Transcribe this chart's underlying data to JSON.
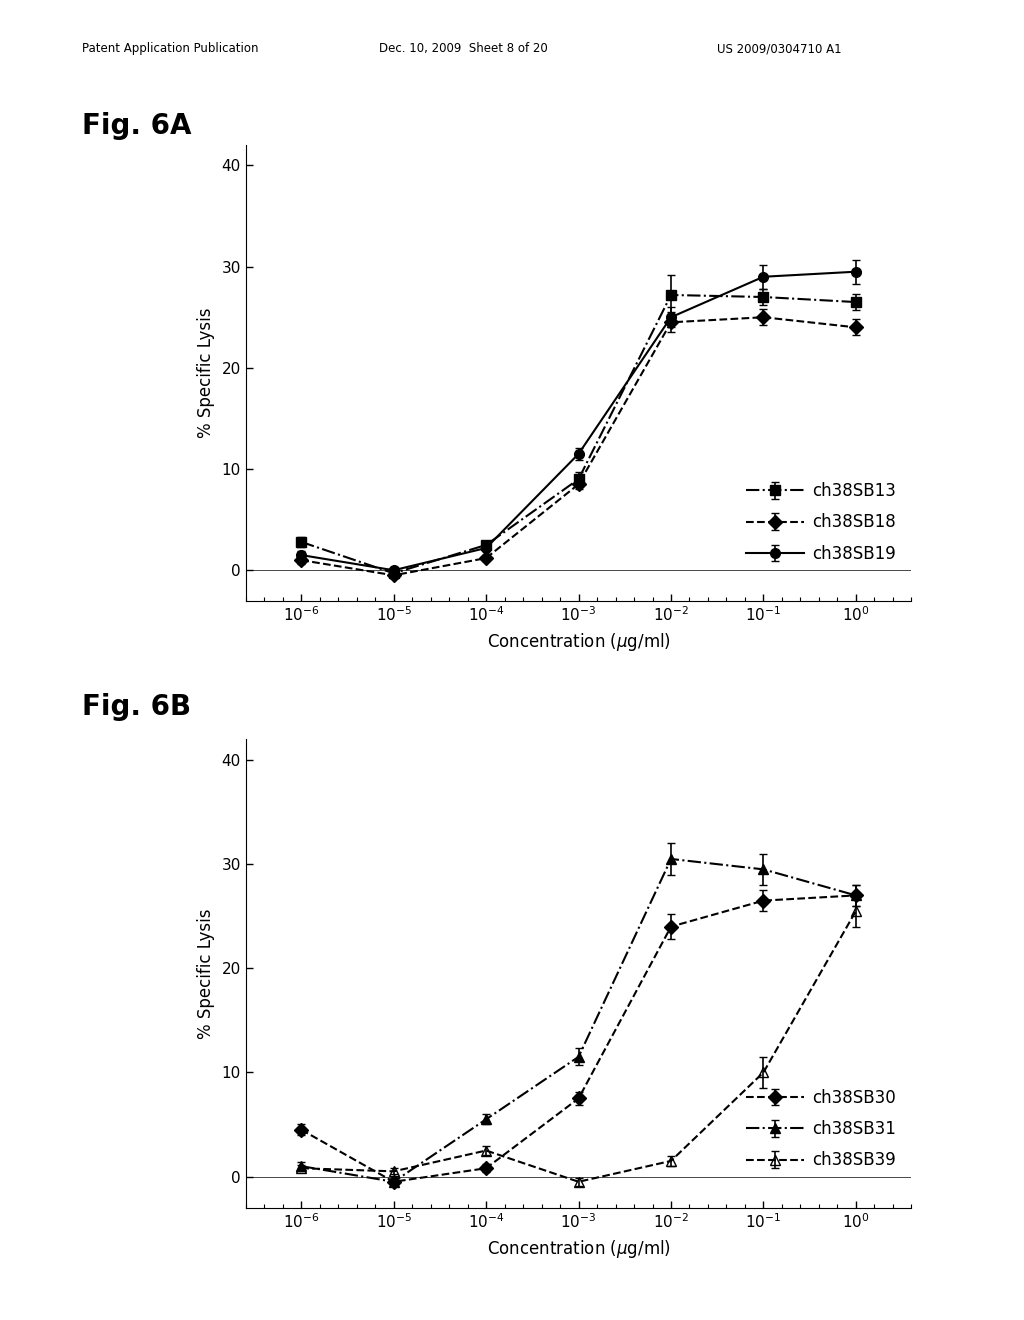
{
  "header_left": "Patent Application Publication",
  "header_mid": "Dec. 10, 2009  Sheet 8 of 20",
  "header_right": "US 2009/0304710 A1",
  "fig6A_label": "Fig. 6A",
  "fig6B_label": "Fig. 6B",
  "x_values": [
    -6,
    -5,
    -4,
    -3,
    -2,
    -1,
    0
  ],
  "x_tick_labels": [
    "$10^{-6}$",
    "$10^{-5}$",
    "$10^{-4}$",
    "$10^{-3}$",
    "$10^{-2}$",
    "$10^{-1}$",
    "$10^{0}$"
  ],
  "xlabel": "Concentration ($\\mu$g/ml)",
  "ylabel": "% Specific Lysis",
  "ylim": [
    -3,
    42
  ],
  "yticks": [
    0,
    10,
    20,
    30,
    40
  ],
  "figA": {
    "ch38SB13": {
      "x": [
        -6,
        -5,
        -4,
        -3,
        -2,
        -1,
        0
      ],
      "y": [
        2.8,
        -0.3,
        2.5,
        9.0,
        27.2,
        27.0,
        26.5
      ],
      "yerr": [
        0.5,
        0.3,
        0.3,
        0.7,
        2.0,
        0.8,
        0.8
      ],
      "color": "#000000",
      "marker": "s",
      "linestyle": "-.",
      "label": "ch38SB13",
      "markersize": 7,
      "fillstyle": "full"
    },
    "ch38SB18": {
      "x": [
        -6,
        -5,
        -4,
        -3,
        -2,
        -1,
        0
      ],
      "y": [
        1.0,
        -0.5,
        1.2,
        8.5,
        24.5,
        25.0,
        24.0
      ],
      "yerr": [
        0.4,
        0.3,
        0.3,
        0.5,
        1.0,
        0.8,
        0.8
      ],
      "color": "#000000",
      "marker": "D",
      "linestyle": "--",
      "label": "ch38SB18",
      "markersize": 7,
      "fillstyle": "full"
    },
    "ch38SB19": {
      "x": [
        -6,
        -5,
        -4,
        -3,
        -2,
        -1,
        0
      ],
      "y": [
        1.5,
        0.0,
        2.2,
        11.5,
        25.0,
        29.0,
        29.5
      ],
      "yerr": [
        0.4,
        0.3,
        0.3,
        0.6,
        1.0,
        1.2,
        1.2
      ],
      "color": "#000000",
      "marker": "o",
      "linestyle": "-",
      "label": "ch38SB19",
      "markersize": 7,
      "fillstyle": "full"
    }
  },
  "figB": {
    "ch38SB30": {
      "x": [
        -6,
        -5,
        -4,
        -3,
        -2,
        -1,
        0
      ],
      "y": [
        4.5,
        -0.5,
        0.8,
        7.5,
        24.0,
        26.5,
        27.0
      ],
      "yerr": [
        0.5,
        0.4,
        0.4,
        0.6,
        1.2,
        1.0,
        1.0
      ],
      "color": "#000000",
      "marker": "D",
      "linestyle": "--",
      "label": "ch38SB30",
      "markersize": 7,
      "fillstyle": "full"
    },
    "ch38SB31": {
      "x": [
        -6,
        -5,
        -4,
        -3,
        -2,
        -1,
        0
      ],
      "y": [
        1.0,
        -0.5,
        5.5,
        11.5,
        30.5,
        29.5,
        27.0
      ],
      "yerr": [
        0.4,
        0.3,
        0.5,
        0.8,
        1.5,
        1.5,
        1.0
      ],
      "color": "#000000",
      "marker": "^",
      "linestyle": "-.",
      "label": "ch38SB31",
      "markersize": 7,
      "fillstyle": "full"
    },
    "ch38SB39": {
      "x": [
        -6,
        -5,
        -4,
        -3,
        -2,
        -1,
        0
      ],
      "y": [
        0.8,
        0.5,
        2.5,
        -0.5,
        1.5,
        10.0,
        25.5
      ],
      "yerr": [
        0.3,
        0.3,
        0.4,
        0.4,
        0.5,
        1.5,
        1.5
      ],
      "color": "#000000",
      "marker": "^",
      "linestyle": "--",
      "label": "ch38SB39",
      "markersize": 7,
      "fillstyle": "none"
    }
  },
  "background_color": "#ffffff",
  "text_color": "#000000"
}
